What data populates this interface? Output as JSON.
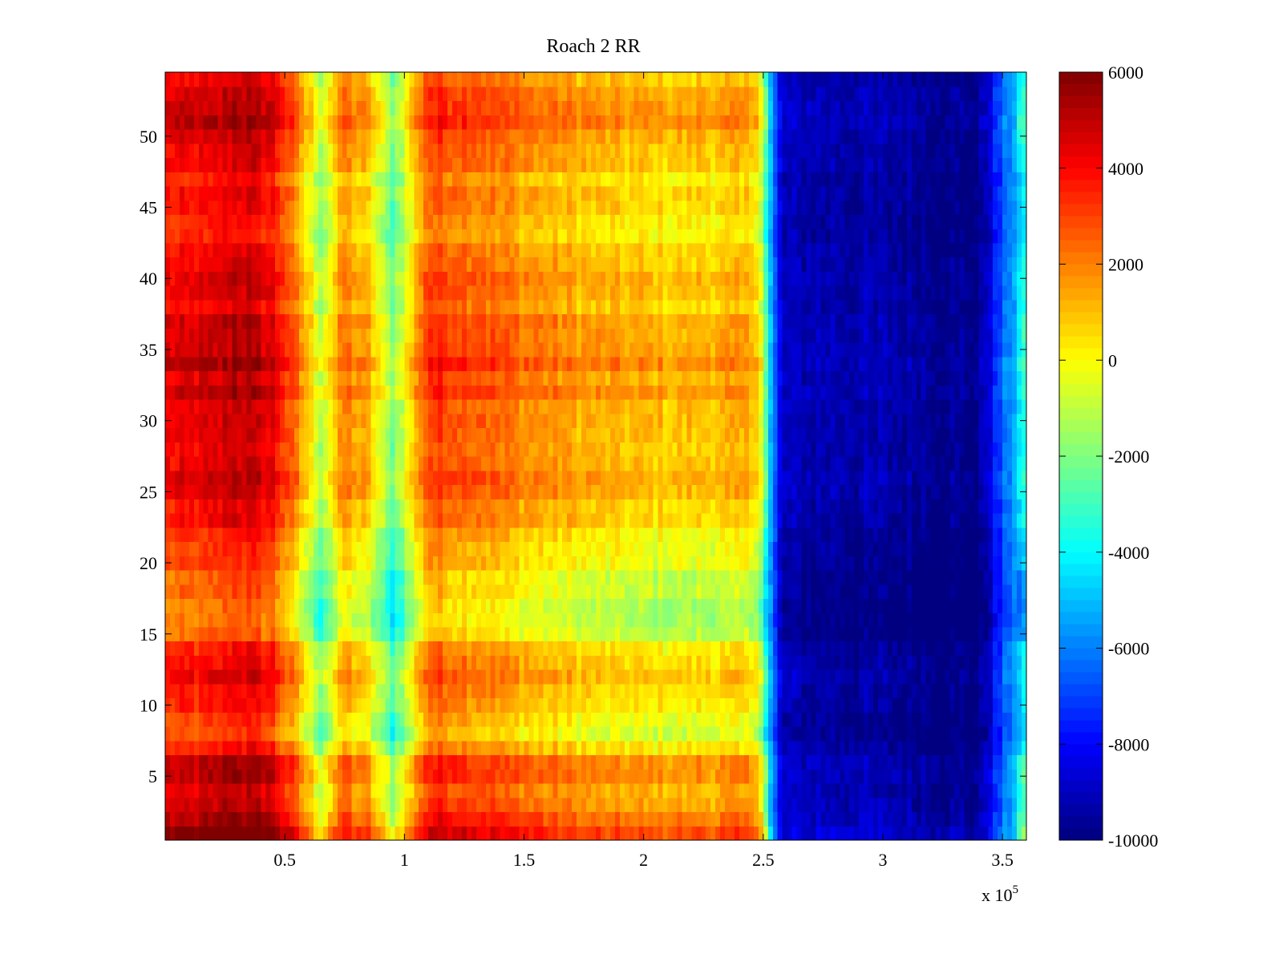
{
  "chart_data": {
    "type": "heatmap",
    "title": "Roach 2 RR",
    "xlabel": "",
    "ylabel": "",
    "x_range": [
      0,
      360000
    ],
    "y_range": [
      0.5,
      54.5
    ],
    "x_ticks": [
      0.5,
      1,
      1.5,
      2,
      2.5,
      3,
      3.5
    ],
    "x_tick_labels": [
      "0.5",
      "1",
      "1.5",
      "2",
      "2.5",
      "3",
      "3.5"
    ],
    "x_multiplier_label": "x 10",
    "x_multiplier_exponent": "5",
    "y_ticks": [
      5,
      10,
      15,
      20,
      25,
      30,
      35,
      40,
      45,
      50
    ],
    "y_tick_labels": [
      "5",
      "10",
      "15",
      "20",
      "25",
      "30",
      "35",
      "40",
      "45",
      "50"
    ],
    "colorbar": {
      "range": [
        -10000,
        6000
      ],
      "ticks": [
        6000,
        4000,
        2000,
        0,
        -2000,
        -4000,
        -6000,
        -8000,
        -10000
      ],
      "tick_labels": [
        "6000",
        "4000",
        "2000",
        "0",
        "-2000",
        "-4000",
        "-6000",
        "-8000",
        "-10000"
      ],
      "colormap": "jet"
    },
    "column_profile": {
      "description": "approximate value along x (in x-axis units) averaged over rows",
      "x": [
        0,
        20000,
        30000,
        45000,
        55000,
        65000,
        75000,
        85000,
        95000,
        100000,
        110000,
        130000,
        150000,
        180000,
        210000,
        240000,
        248000,
        252000,
        258000,
        300000,
        340000,
        356000,
        360000
      ],
      "values": [
        3500,
        3800,
        4500,
        3800,
        1500,
        -1500,
        1500,
        500,
        -2500,
        -1000,
        2600,
        2200,
        1400,
        700,
        400,
        600,
        500,
        -4500,
        -9200,
        -9500,
        -10000,
        -5000,
        -4000
      ]
    },
    "row_modifiers": {
      "description": "approximate additive value by row index (y)",
      "y": [
        1,
        2,
        3,
        6,
        8,
        9,
        11,
        13,
        16,
        20,
        25,
        30,
        34,
        38,
        40,
        44,
        48,
        51,
        54
      ],
      "values": [
        2500,
        1500,
        800,
        1200,
        -1500,
        -800,
        300,
        0,
        -1800,
        -1000,
        600,
        400,
        1200,
        300,
        1000,
        -500,
        200,
        1400,
        400
      ]
    }
  }
}
